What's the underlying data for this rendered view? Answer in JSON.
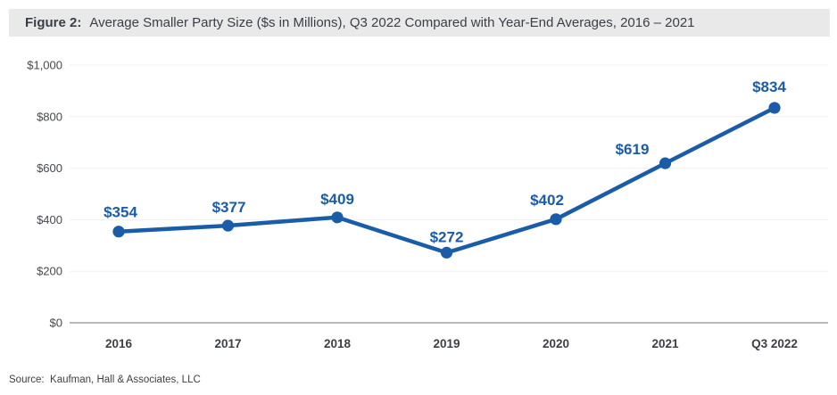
{
  "figure_header": {
    "label": "Figure 2:",
    "title": "Average Smaller Party Size ($s in Millions), Q3 2022 Compared with Year-End Averages, 2016 – 2021"
  },
  "source_note": "Source:  Kaufman, Hall & Associates, LLC",
  "chart_data": {
    "type": "line",
    "title": "Average Smaller Party Size ($s in Millions), Q3 2022 Compared with Year-End Averages, 2016 – 2021",
    "categories": [
      "2016",
      "2017",
      "2018",
      "2019",
      "2020",
      "2021",
      "Q3 2022"
    ],
    "values": [
      354,
      377,
      409,
      272,
      402,
      619,
      834
    ],
    "data_labels": [
      "$354",
      "$377",
      "$409",
      "$272",
      "$402",
      "$619",
      "$834"
    ],
    "xlabel": "",
    "ylabel": "",
    "ylim": [
      0,
      1000
    ],
    "ytick_interval": 200,
    "yticks": [
      0,
      200,
      400,
      600,
      800,
      1000
    ],
    "ytick_labels": [
      "$0",
      "$200",
      "$400",
      "$600",
      "$800",
      "$1,000"
    ],
    "grid": true,
    "legend": false,
    "colors": {
      "line": "#1A5CA8",
      "marker": "#1A5CA8",
      "data_label": "#1A5CA8",
      "gridline": "#F0F0F0",
      "axis_line": "#8F8F8F",
      "ytick_label": "#45484E",
      "xtick_label": "#3C3F45",
      "header_bg": "#E9E9E9",
      "header_text": "#3A3F47",
      "source_text": "#3F3F3F"
    }
  }
}
